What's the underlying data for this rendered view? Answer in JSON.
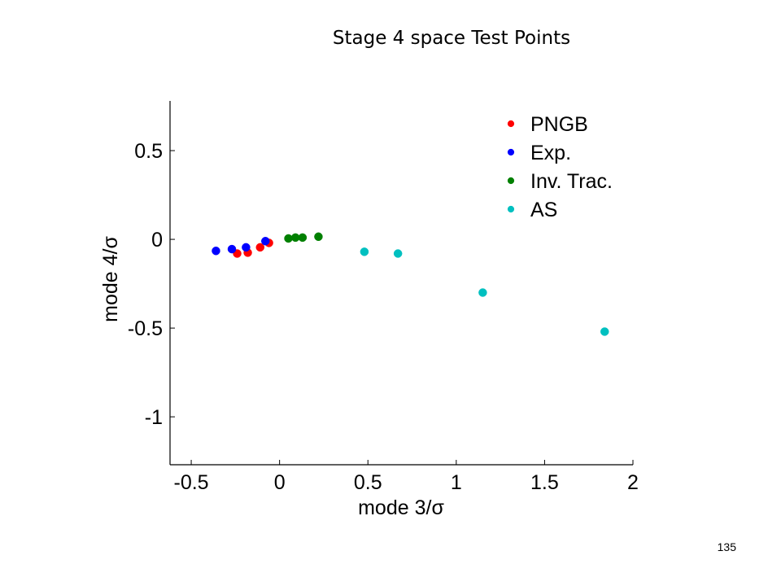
{
  "slide": {
    "title": "Stage 4 space Test Points",
    "page_number": "135"
  },
  "chart_data": {
    "type": "scatter",
    "xlabel": "mode 3/σ",
    "ylabel": "mode 4/σ",
    "xlim": [
      -0.62,
      2.0
    ],
    "ylim": [
      -1.27,
      0.78
    ],
    "xticks": [
      -0.5,
      0,
      0.5,
      1,
      1.5,
      2
    ],
    "xtick_labels": [
      "-0.5",
      "0",
      "0.5",
      "1",
      "1.5",
      "2"
    ],
    "yticks": [
      0.5,
      0,
      -0.5,
      -1
    ],
    "ytick_labels": [
      "0.5",
      "0",
      "-0.5",
      "-1"
    ],
    "grid": false,
    "legend_position": "top-right",
    "series": [
      {
        "name": "PNGB",
        "color": "#ff0000",
        "points": [
          [
            -0.24,
            -0.08
          ],
          [
            -0.18,
            -0.075
          ],
          [
            -0.11,
            -0.045
          ],
          [
            -0.06,
            -0.02
          ]
        ]
      },
      {
        "name": "Exp.",
        "color": "#0000ff",
        "points": [
          [
            -0.36,
            -0.065
          ],
          [
            -0.27,
            -0.055
          ],
          [
            -0.19,
            -0.045
          ],
          [
            -0.08,
            -0.01
          ]
        ]
      },
      {
        "name": "Inv. Trac.",
        "color": "#008000",
        "points": [
          [
            0.05,
            0.005
          ],
          [
            0.09,
            0.01
          ],
          [
            0.13,
            0.01
          ],
          [
            0.22,
            0.015
          ]
        ]
      },
      {
        "name": "AS",
        "color": "#00c0c0",
        "points": [
          [
            0.48,
            -0.07
          ],
          [
            0.67,
            -0.08
          ],
          [
            1.15,
            -0.3
          ],
          [
            1.84,
            -0.52
          ]
        ]
      }
    ]
  }
}
